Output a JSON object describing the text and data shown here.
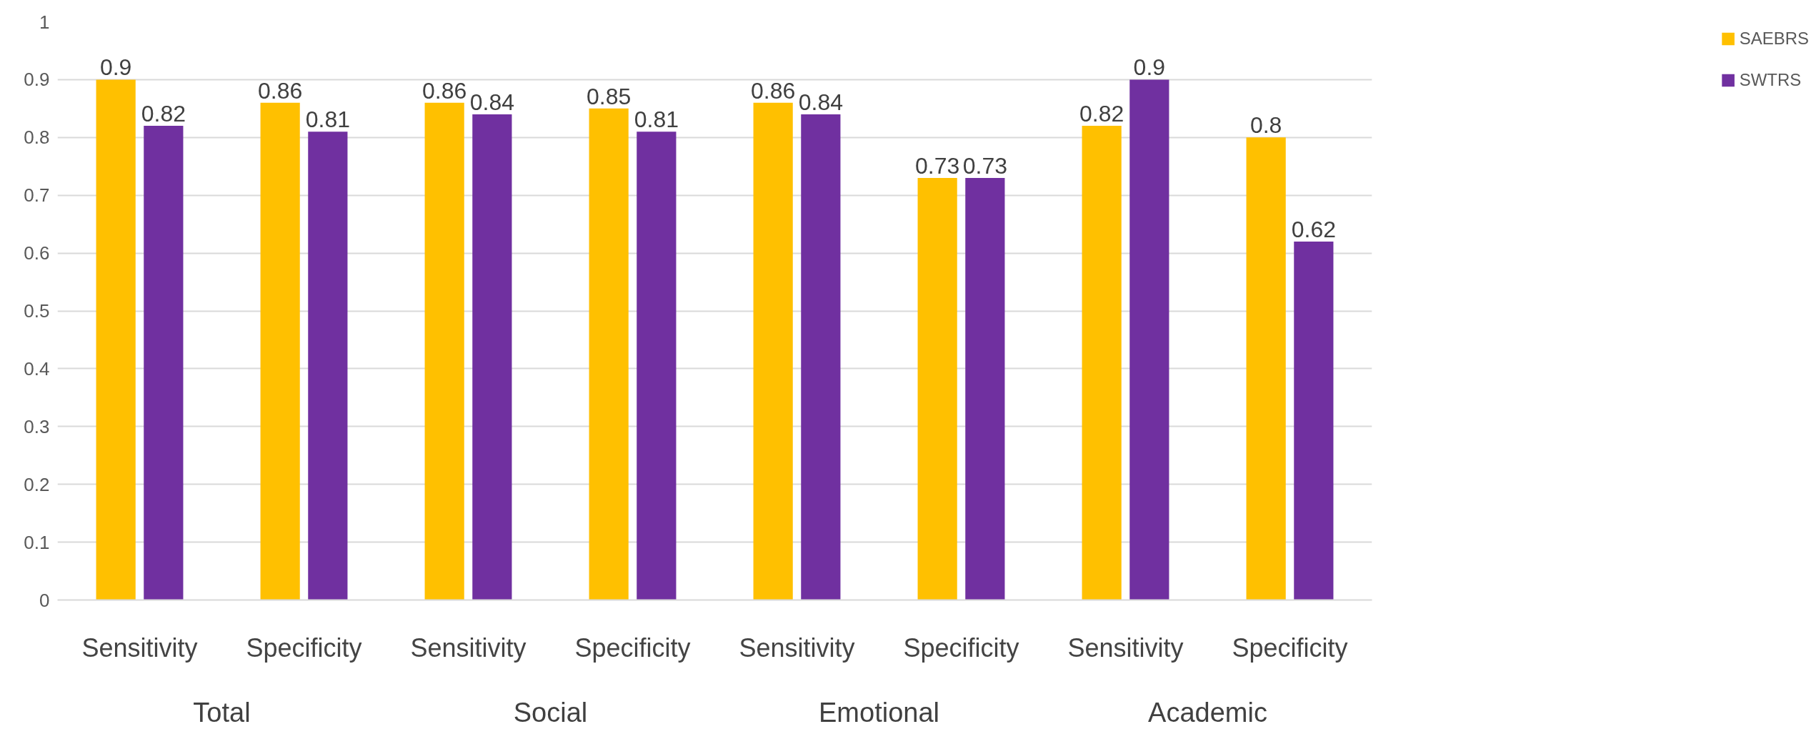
{
  "chart_data": {
    "type": "bar",
    "categories": [
      "Sensitivity",
      "Specificity",
      "Sensitivity",
      "Specificity",
      "Sensitivity",
      "Specificity",
      "Sensitivity",
      "Specificity"
    ],
    "series": [
      {
        "name": "SAEBRS",
        "color": "#ffc000",
        "values": [
          0.9,
          0.86,
          0.86,
          0.85,
          0.86,
          0.73,
          0.82,
          0.8
        ]
      },
      {
        "name": "SWTRS",
        "color": "#7030a0",
        "values": [
          0.82,
          0.81,
          0.84,
          0.81,
          0.84,
          0.73,
          0.9,
          0.62
        ]
      }
    ],
    "annotations": [
      "Total",
      "Social",
      "Emotional",
      "Academic"
    ],
    "ylim": [
      0,
      1
    ],
    "yticks": [
      0,
      0.1,
      0.2,
      0.3,
      0.4,
      0.5,
      0.6,
      0.7,
      0.8,
      0.9,
      1
    ],
    "grid": "y",
    "legend": "right",
    "data_labels": true
  }
}
